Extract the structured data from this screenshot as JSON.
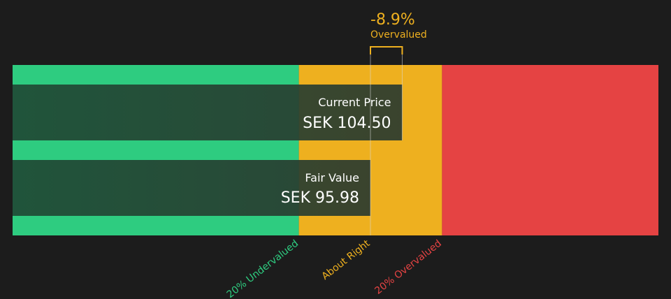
{
  "chart_data": {
    "type": "bar",
    "currency": "SEK",
    "bars": [
      {
        "label": "Current Price",
        "value_text": "SEK 104.50",
        "value": 104.5
      },
      {
        "label": "Fair Value",
        "value_text": "SEK 95.98",
        "value": 95.98
      }
    ],
    "difference": {
      "percent_text": "-8.9%",
      "status_text": "Overvalued"
    },
    "zones": [
      {
        "label": "20% Undervalued",
        "color": "#2ecc80"
      },
      {
        "label": "About Right",
        "color": "#eeb01f"
      },
      {
        "label": "20% Overvalued",
        "color": "#e54343"
      }
    ],
    "colors": {
      "background": "#1c1c1c",
      "green": "#2ecc80",
      "amber": "#eeb01f",
      "red": "#e54343",
      "bar_overlay": "#2a3a2e",
      "text": "#ffffff",
      "accent": "#eeb01f"
    }
  }
}
